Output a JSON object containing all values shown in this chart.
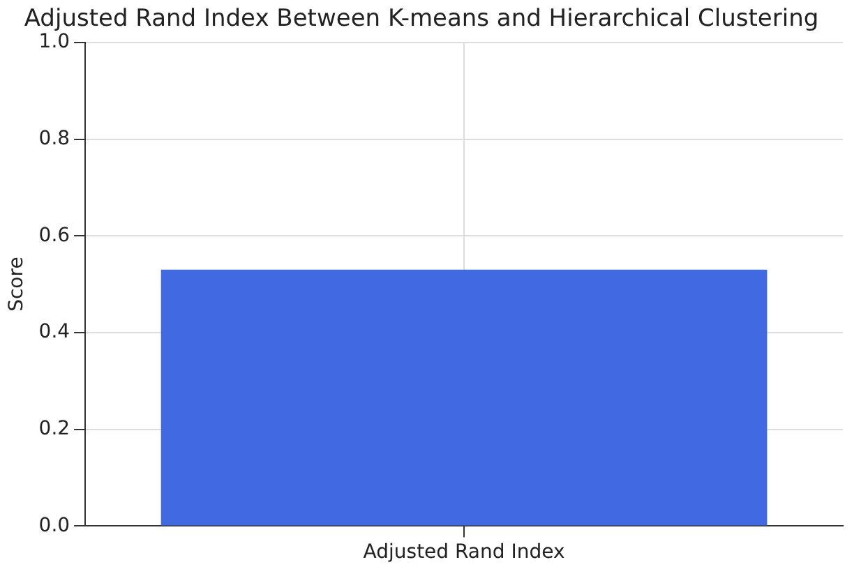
{
  "chart_data": {
    "type": "bar",
    "title": "Adjusted Rand Index Between K-means and Hierarchical Clustering",
    "ylabel": "Score",
    "categories": [
      "Adjusted Rand Index"
    ],
    "values": [
      0.53
    ],
    "color": "#4169e1",
    "ylim": [
      0,
      1
    ],
    "yticks": [
      {
        "value": 0,
        "label": "0.0"
      },
      {
        "value": 0.2,
        "label": "0.2"
      },
      {
        "value": 0.4,
        "label": "0.4"
      },
      {
        "value": 0.6,
        "label": "0.6"
      },
      {
        "value": 0.8,
        "label": "0.8"
      },
      {
        "value": 1,
        "label": "1.0"
      }
    ],
    "grid": true
  }
}
